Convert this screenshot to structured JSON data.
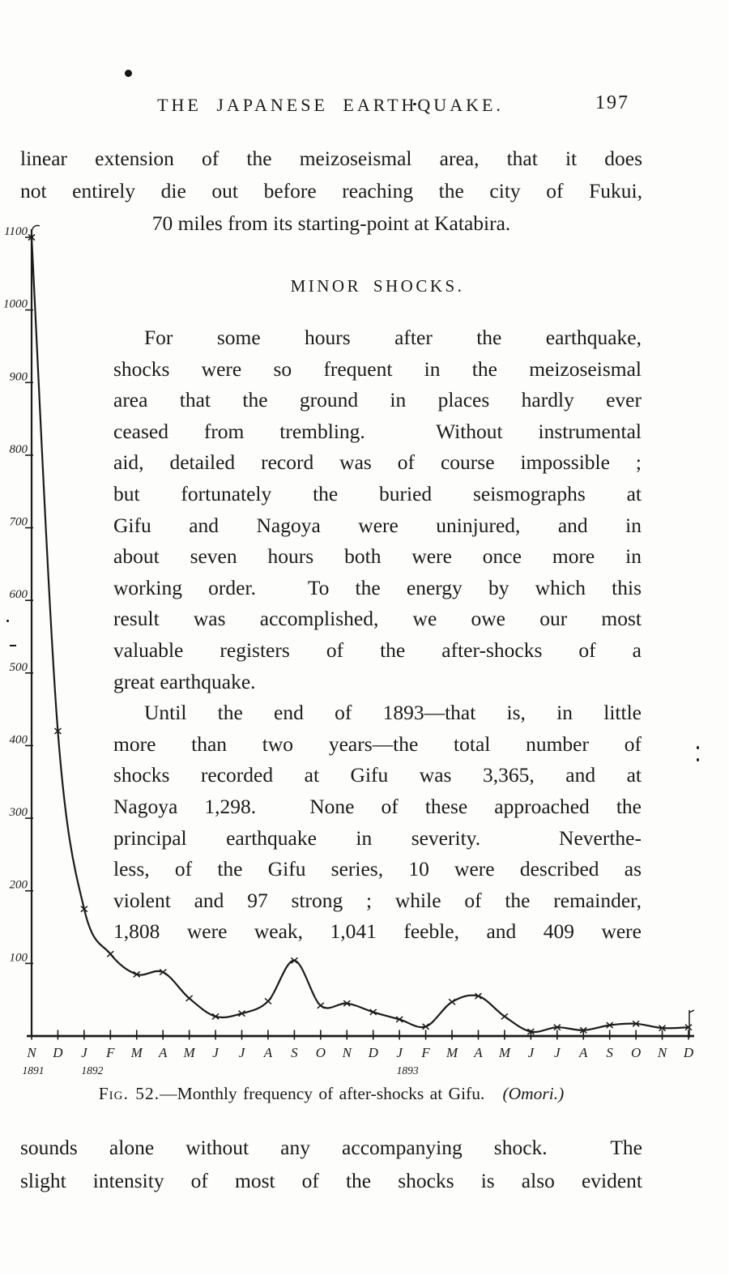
{
  "header": {
    "title": "THE JAPANESE EARTHQUAKE.",
    "page_number": "197"
  },
  "para_top": {
    "lines": [
      "linear extension of the meizoseismal area, that it does",
      "not entirely die out before reaching the city of Fukui,"
    ],
    "continuation_line": "70 miles from its starting-point at Katabira."
  },
  "section_heading": "MINOR SHOCKS.",
  "para_minor_shocks": {
    "lines": [
      "For some hours after the earthquake,",
      "shocks were so frequent in the meizoseismal",
      "area that the ground in places hardly ever",
      "ceased from trembling.  Without instrumental",
      "aid, detailed record was of course impossible ;",
      "but fortunately the buried seismographs at",
      "Gifu and Nagoya were uninjured, and in",
      "about seven hours both were once more in",
      "working order.  To the energy by which this",
      "result was accomplished, we owe our most",
      "valuable registers of the after-shocks of a",
      "great earthquake."
    ]
  },
  "para_until": {
    "lines": [
      "Until the end of 1893—that is, in little",
      "more than two years—the total number of",
      "shocks recorded at Gifu was 3,365, and at",
      "Nagoya 1,298.  None of these approached the",
      "principal earthquake in severity.  Neverthe-",
      "less, of the Gifu series, 10 were described as",
      "violent and 97 strong ; while of the remainder,",
      "1,808 were weak, 1,041 feeble, and 409 were"
    ]
  },
  "figure_caption": {
    "fig_label": "Fig. 52.",
    "text": "—Monthly frequency of after-shocks at Gifu.   ",
    "attribution": "(Omori.)"
  },
  "para_bottom": {
    "lines": [
      "sounds alone without any accompanying shock.  The",
      "slight intensity of most of the shocks is also evident"
    ]
  },
  "chart_data": {
    "type": "line",
    "title": "Monthly frequency of after-shocks at Gifu (Omori)",
    "x_labels": [
      "N",
      "D",
      "J",
      "F",
      "M",
      "A",
      "M",
      "J",
      "J",
      "A",
      "S",
      "O",
      "N",
      "D",
      "J",
      "F",
      "M",
      "A",
      "M",
      "J",
      "J",
      "A",
      "S",
      "O",
      "N",
      "D"
    ],
    "year_labels": [
      {
        "text": "1891",
        "month_index": 0,
        "dx": 2
      },
      {
        "text": "1892",
        "month_index": 2,
        "dx": 10
      },
      {
        "text": "1893",
        "month_index": 14,
        "dx": 10
      }
    ],
    "values": [
      1100,
      420,
      175,
      113,
      85,
      88,
      52,
      27,
      31,
      48,
      104,
      42,
      45,
      33,
      23,
      13,
      47,
      55,
      27,
      6,
      12,
      8,
      15,
      17,
      11,
      12
    ],
    "y_ticks": [
      100,
      200,
      300,
      400,
      500,
      600,
      700,
      800,
      900,
      1000,
      1100
    ],
    "ylim": [
      0,
      1120
    ],
    "xlabel": "",
    "ylabel": "",
    "marker": "x",
    "grid": false,
    "legend": "none",
    "ink_color": "#1b1b1b"
  }
}
